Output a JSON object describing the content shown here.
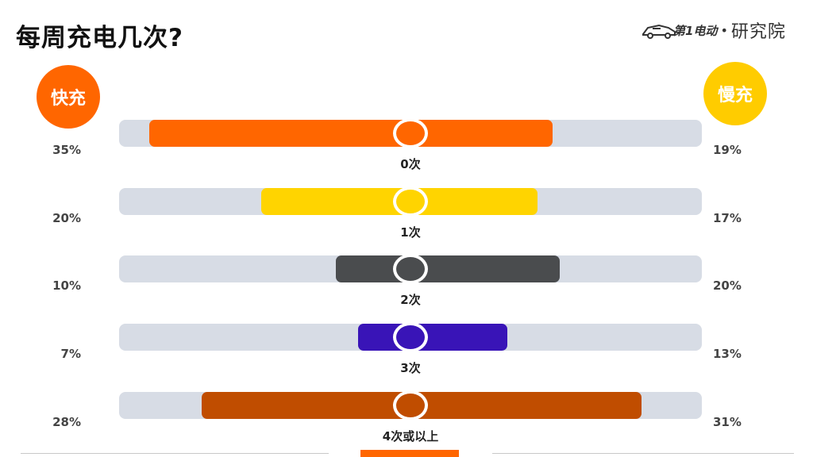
{
  "title": "每周充电几次?",
  "logo": {
    "brand": "第1电动",
    "dot": "•",
    "institute": "研究院"
  },
  "badges": {
    "fast": {
      "label": "快充",
      "color": "#ff6600"
    },
    "slow": {
      "label": "慢充",
      "color": "#ffcc00"
    }
  },
  "chart_data": {
    "type": "bar",
    "categories": [
      "0次",
      "1次",
      "2次",
      "3次",
      "4次或以上"
    ],
    "series": [
      {
        "name": "快充",
        "values": [
          35,
          20,
          10,
          7,
          28
        ]
      },
      {
        "name": "慢充",
        "values": [
          19,
          17,
          20,
          13,
          31
        ]
      }
    ],
    "value_labels_left": [
      "35%",
      "20%",
      "10%",
      "7%",
      "28%"
    ],
    "value_labels_right": [
      "19%",
      "17%",
      "20%",
      "13%",
      "31%"
    ],
    "colors": [
      "#ff6600",
      "#ffd400",
      "#4a4c4e",
      "#3914b7",
      "#c04d00"
    ],
    "track_color": "#d7dce5",
    "unit": "%"
  },
  "footer": {
    "accent": "#ff6600"
  }
}
